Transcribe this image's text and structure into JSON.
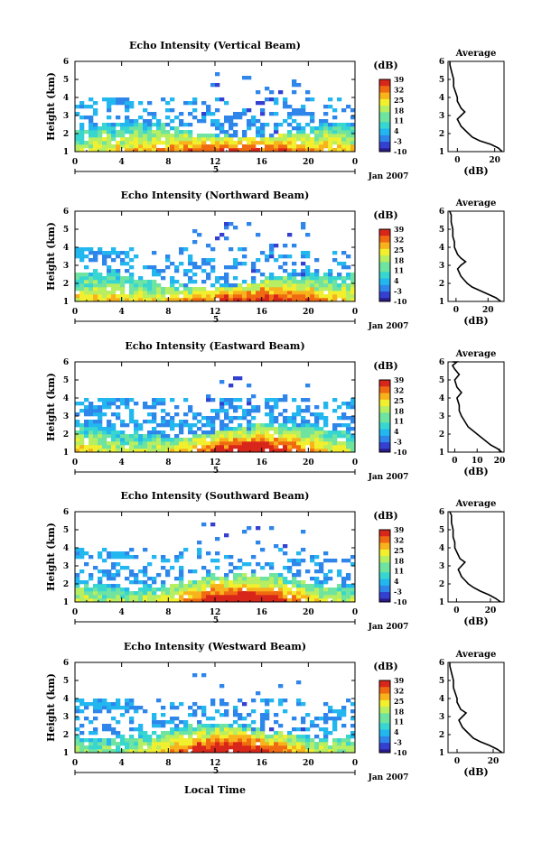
{
  "figure": {
    "x_label": "Local Time",
    "date_label": "Jan 2007",
    "height_unit_label": "Height (km)",
    "colorbar_unit": "(dB)",
    "colorbar_ticks": [
      "39",
      "32",
      "25",
      "18",
      "11",
      "4",
      "-3",
      "-10"
    ],
    "colormap": [
      "#2a1a8c",
      "#3340d0",
      "#2f86ea",
      "#23b7f0",
      "#38d6d0",
      "#6fe3a0",
      "#b7ee62",
      "#f2ef2e",
      "#f8b21c",
      "#f06a12",
      "#d8261a"
    ]
  },
  "chart_data": [
    {
      "type": "heatmap",
      "title": "Echo Intensity (Vertical Beam)",
      "ylabel": "Height (km)",
      "xlabel": "Local Time",
      "x_ticks": [
        "0",
        "4",
        "8",
        "12",
        "16",
        "20",
        "0"
      ],
      "x_range": [
        0,
        24
      ],
      "day_label": "5",
      "date_label": "Jan 2007",
      "y_ticks": [
        "1",
        "2",
        "3",
        "4",
        "5",
        "6"
      ],
      "y_range": [
        1,
        6
      ],
      "colorbar": {
        "label": "(dB)",
        "ticks": [
          39,
          32,
          25,
          18,
          11,
          4,
          -3,
          -10
        ],
        "range": [
          -10,
          39
        ]
      },
      "average_profile": {
        "title": "Average",
        "xlabel": "(dB)",
        "x_ticks": [
          "0",
          "20"
        ],
        "x_range": [
          -5,
          25
        ],
        "heights": [
          1.0,
          1.2,
          1.4,
          1.6,
          1.8,
          2.0,
          2.2,
          2.4,
          2.6,
          2.8,
          3.0,
          3.2,
          3.4,
          3.6,
          3.8,
          4.0,
          4.3,
          4.6,
          5.0,
          5.4,
          5.8,
          6.0
        ],
        "values": [
          24,
          22,
          18,
          12,
          8,
          6,
          4,
          2,
          1,
          0,
          2,
          4,
          2,
          1,
          0,
          0,
          -1,
          -2,
          -2,
          -3,
          -4,
          -4
        ]
      }
    },
    {
      "type": "heatmap",
      "title": "Echo Intensity (Northward Beam)",
      "ylabel": "Height (km)",
      "xlabel": "Local Time",
      "x_ticks": [
        "0",
        "4",
        "8",
        "12",
        "16",
        "20",
        "0"
      ],
      "x_range": [
        0,
        24
      ],
      "day_label": "5",
      "date_label": "Jan 2007",
      "y_ticks": [
        "1",
        "2",
        "3",
        "4",
        "5",
        "6"
      ],
      "y_range": [
        1,
        6
      ],
      "colorbar": {
        "label": "(dB)",
        "ticks": [
          39,
          32,
          25,
          18,
          11,
          4,
          -3,
          -10
        ],
        "range": [
          -10,
          39
        ]
      },
      "average_profile": {
        "title": "Average",
        "xlabel": "(dB)",
        "x_ticks": [
          "0",
          "20"
        ],
        "x_range": [
          -5,
          30
        ],
        "heights": [
          1.0,
          1.2,
          1.4,
          1.6,
          1.8,
          2.0,
          2.2,
          2.4,
          2.6,
          2.8,
          3.0,
          3.2,
          3.4,
          3.6,
          3.8,
          4.0,
          4.3,
          4.6,
          5.0,
          5.4,
          5.8,
          6.0
        ],
        "values": [
          28,
          25,
          20,
          15,
          10,
          7,
          5,
          3,
          2,
          1,
          3,
          6,
          3,
          1,
          0,
          -1,
          -1,
          -2,
          -2,
          -3,
          -3,
          -4
        ]
      }
    },
    {
      "type": "heatmap",
      "title": "Echo Intensity (Eastward Beam)",
      "ylabel": "Height (km)",
      "xlabel": "Local Time",
      "x_ticks": [
        "0",
        "4",
        "8",
        "12",
        "16",
        "20",
        "0"
      ],
      "x_range": [
        0,
        24
      ],
      "day_label": "5",
      "date_label": "Jan 2007",
      "y_ticks": [
        "1",
        "2",
        "3",
        "4",
        "5",
        "6"
      ],
      "y_range": [
        1,
        6
      ],
      "colorbar": {
        "label": "(dB)",
        "ticks": [
          39,
          32,
          25,
          18,
          11,
          4,
          -3,
          -10
        ],
        "range": [
          -10,
          39
        ]
      },
      "average_profile": {
        "title": "Average",
        "xlabel": "(dB)",
        "x_ticks": [
          "0",
          "10",
          "20"
        ],
        "x_range": [
          -3,
          22
        ],
        "heights": [
          1.0,
          1.2,
          1.4,
          1.6,
          1.8,
          2.0,
          2.2,
          2.4,
          2.6,
          2.8,
          3.0,
          3.3,
          3.6,
          4.0,
          4.3,
          4.6,
          5.0,
          5.3,
          5.6,
          5.8,
          6.0,
          6.2
        ],
        "values": [
          21,
          19,
          16,
          14,
          12,
          10,
          8,
          6,
          5,
          4,
          3,
          2,
          2,
          1,
          3,
          1,
          0,
          2,
          0,
          -1,
          1,
          -1
        ]
      }
    },
    {
      "type": "heatmap",
      "title": "Echo Intensity (Southward Beam)",
      "ylabel": "Height (km)",
      "xlabel": "Local Time",
      "x_ticks": [
        "0",
        "4",
        "8",
        "12",
        "16",
        "20",
        "0"
      ],
      "x_range": [
        0,
        24
      ],
      "day_label": "5",
      "date_label": "Jan 2007",
      "y_ticks": [
        "1",
        "2",
        "3",
        "4",
        "5",
        "6"
      ],
      "y_range": [
        1,
        6
      ],
      "colorbar": {
        "label": "(dB)",
        "ticks": [
          39,
          32,
          25,
          18,
          11,
          4,
          -3,
          -10
        ],
        "range": [
          -10,
          39
        ]
      },
      "average_profile": {
        "title": "Average",
        "xlabel": "(dB)",
        "x_ticks": [
          "0",
          "20"
        ],
        "x_range": [
          -5,
          28
        ],
        "heights": [
          1.0,
          1.2,
          1.4,
          1.6,
          1.8,
          2.0,
          2.2,
          2.4,
          2.6,
          2.8,
          3.0,
          3.2,
          3.4,
          3.6,
          3.8,
          4.0,
          4.3,
          4.6,
          5.0,
          5.4,
          5.8,
          6.0
        ],
        "values": [
          26,
          23,
          19,
          14,
          10,
          7,
          5,
          3,
          2,
          1,
          3,
          5,
          2,
          1,
          0,
          -1,
          -1,
          -2,
          -2,
          -3,
          -3,
          -4
        ]
      }
    },
    {
      "type": "heatmap",
      "title": "Echo Intensity (Westward Beam)",
      "ylabel": "Height (km)",
      "xlabel": "Local Time",
      "x_ticks": [
        "0",
        "4",
        "8",
        "12",
        "16",
        "20",
        "0"
      ],
      "x_range": [
        0,
        24
      ],
      "day_label": "5",
      "date_label": "Jan 2007",
      "y_ticks": [
        "1",
        "2",
        "3",
        "4",
        "5",
        "6"
      ],
      "y_range": [
        1,
        6
      ],
      "colorbar": {
        "label": "(dB)",
        "ticks": [
          39,
          32,
          25,
          18,
          11,
          4,
          -3,
          -10
        ],
        "range": [
          -10,
          39
        ]
      },
      "average_profile": {
        "title": "Average",
        "xlabel": "(dB)",
        "x_ticks": [
          "0",
          "20"
        ],
        "x_range": [
          -5,
          26
        ],
        "heights": [
          1.0,
          1.2,
          1.4,
          1.6,
          1.8,
          2.0,
          2.2,
          2.4,
          2.6,
          2.8,
          3.0,
          3.2,
          3.4,
          3.6,
          3.8,
          4.0,
          4.3,
          4.6,
          5.0,
          5.4,
          5.8,
          6.0
        ],
        "values": [
          25,
          22,
          18,
          13,
          9,
          7,
          5,
          3,
          2,
          1,
          3,
          5,
          2,
          1,
          0,
          0,
          -1,
          -2,
          -2,
          -3,
          -4,
          -4
        ]
      }
    }
  ]
}
